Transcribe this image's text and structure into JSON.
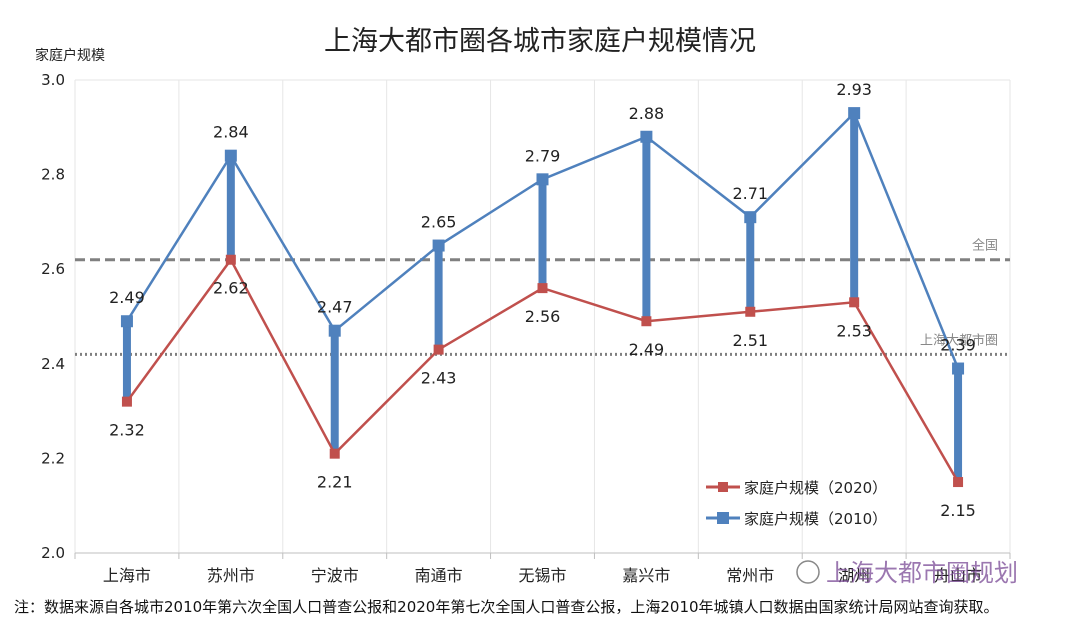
{
  "chart_data": {
    "type": "line",
    "title": "上海大都市圈各城市家庭户规模情况",
    "ylabel": "家庭户规模",
    "xlabel": "",
    "ylim": [
      2.0,
      3.0
    ],
    "yticks": [
      "2.0",
      "2.2",
      "2.4",
      "2.6",
      "2.8",
      "3.0"
    ],
    "categories": [
      "上海市",
      "苏州市",
      "宁波市",
      "南通市",
      "无锡市",
      "嘉兴市",
      "常州市",
      "湖州",
      "舟山市"
    ],
    "series": [
      {
        "name": "家庭户规模（2020）",
        "color": "#c0504d",
        "values": [
          2.32,
          2.62,
          2.21,
          2.43,
          2.56,
          2.49,
          2.51,
          2.53,
          2.15
        ],
        "labels": [
          "2.32",
          "2.62",
          "2.21",
          "2.43",
          "2.56",
          "2.49",
          "2.51",
          "2.53",
          "2.15"
        ]
      },
      {
        "name": "家庭户规模（2010）",
        "color": "#4f81bd",
        "values": [
          2.49,
          2.84,
          2.47,
          2.65,
          2.79,
          2.88,
          2.71,
          2.93,
          2.39
        ],
        "labels": [
          "2.49",
          "2.84",
          "2.47",
          "2.65",
          "2.79",
          "2.88",
          "2.71",
          "2.93",
          "2.39"
        ]
      }
    ],
    "reference_lines": [
      {
        "name": "全国",
        "value": 2.62,
        "style": "dashed",
        "color": "#808080"
      },
      {
        "name": "上海大都市圈",
        "value": 2.42,
        "style": "dotted",
        "color": "#808080"
      }
    ],
    "bar_color": "#4f81bd",
    "legend_position": "bottom-right"
  },
  "watermark": "上海大都市圈规划",
  "note": "注：数据来源自各城市2010年第六次全国人口普查公报和2020年第七次全国人口普查公报，上海2010年城镇人口数据由国家统计局网站查询获取。"
}
